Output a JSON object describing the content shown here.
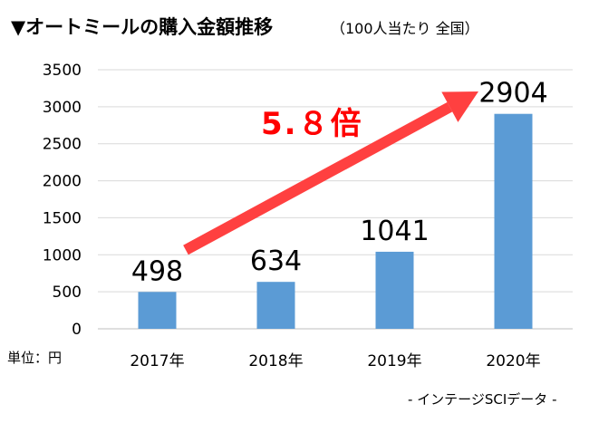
{
  "title": {
    "main": "▼オートミールの購入金額推移",
    "sub": "（100人当たり 全国）"
  },
  "unit_label": "単位：円",
  "source": "- インテージSCIデータ -",
  "annotation": {
    "text": "5.８倍",
    "color": "#ff0000"
  },
  "colors": {
    "bar": "#5b9bd5",
    "grid": "#d9d9d9",
    "arrow": "#ff4040"
  },
  "chart_data": {
    "type": "bar",
    "categories": [
      "2017年",
      "2018年",
      "2019年",
      "2020年"
    ],
    "values": [
      498,
      634,
      1041,
      2904
    ],
    "data_labels": [
      "498",
      "634",
      "1041",
      "2904"
    ],
    "ylim": [
      0,
      3500
    ],
    "yticks": [
      "0",
      "500",
      "1000",
      "1500",
      "2000",
      "2500",
      "3000",
      "3500"
    ],
    "ytick_values": [
      0,
      500,
      1000,
      1500,
      2000,
      2500,
      3000,
      3500
    ],
    "grid": true,
    "legend": "none",
    "xlabel": "",
    "ylabel": ""
  }
}
